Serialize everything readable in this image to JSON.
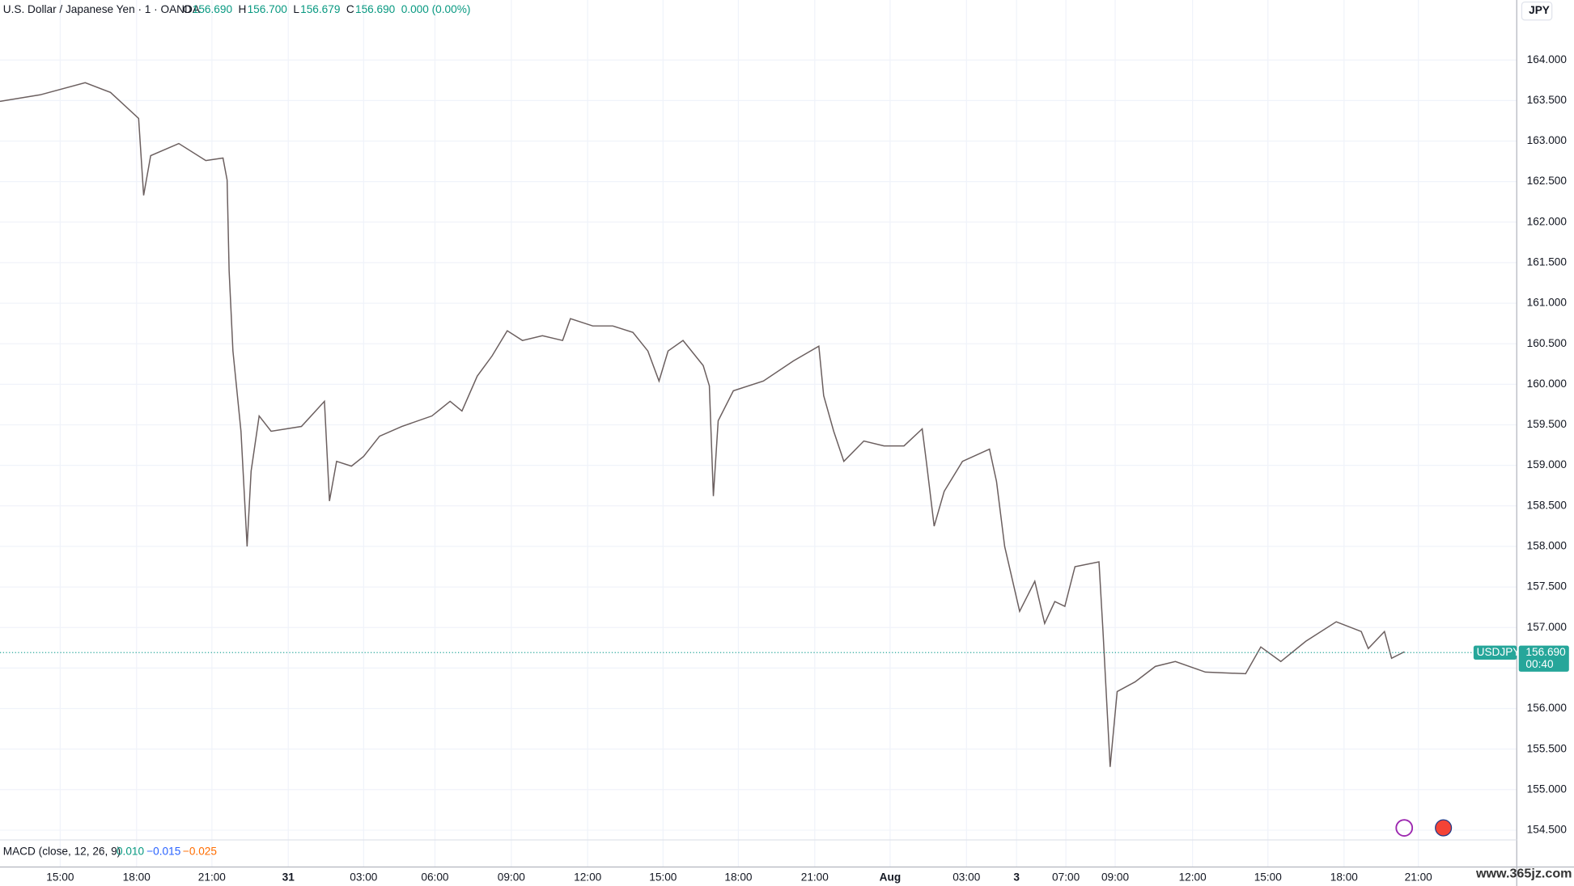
{
  "header": {
    "symbol": "U.S. Dollar / Japanese Yen · 1 · OANDA",
    "ohlc": [
      {
        "key": "O",
        "value": "156.690"
      },
      {
        "key": "H",
        "value": "156.700"
      },
      {
        "key": "L",
        "value": "156.679"
      },
      {
        "key": "C",
        "value": "156.690"
      }
    ],
    "change": "0.000 (0.00%)"
  },
  "currency": "JPY",
  "price_tag": {
    "symbol": "USDJPY",
    "countdown": "00:40"
  },
  "macd": {
    "label": "MACD (close, 12, 26, 9)",
    "macd": "0.010",
    "signal": "−0.015",
    "histogram": "−0.025"
  },
  "watermark": "www.365jz.com",
  "chart_data": {
    "type": "line",
    "x": [
      -2.38,
      -0.79,
      0.99,
      1.99,
      3.1,
      3.3,
      3.58,
      4.69,
      5.76,
      6.44,
      6.6,
      6.68,
      6.83,
      7.15,
      7.39,
      7.55,
      7.87,
      8.34,
      8.94,
      9.54,
      10.45,
      10.65,
      10.93,
      11.52,
      12.0,
      12.63,
      13.51,
      14.7,
      15.42,
      15.89,
      16.49,
      17.08,
      17.68,
      18.28,
      19.07,
      19.87,
      20.18,
      21.06,
      21.85,
      22.65,
      23.24,
      23.68,
      24.04,
      24.63,
      25.43,
      25.67,
      25.83,
      26.02,
      26.62,
      27.81,
      29.0,
      30.0,
      30.19,
      30.59,
      30.99,
      31.78,
      32.58,
      33.37,
      34.09,
      34.25,
      34.56,
      34.96,
      35.68,
      36.75,
      37.03,
      37.35,
      37.94,
      38.54,
      38.93,
      39.33,
      39.73,
      40.13,
      41.08,
      41.24,
      41.52,
      41.8,
      42.51,
      43.31,
      44.1,
      45.29,
      46.88,
      47.48,
      48.27,
      49.26,
      50.46,
      51.45,
      51.73,
      52.37,
      52.65,
      53.16
    ],
    "series": [
      {
        "name": "USDJPY",
        "color": "#6b5f5f",
        "values": [
          163.49,
          163.57,
          163.72,
          163.6,
          163.28,
          162.33,
          162.82,
          162.97,
          162.76,
          162.79,
          162.52,
          161.4,
          160.41,
          159.42,
          158.0,
          158.93,
          159.61,
          159.42,
          159.45,
          159.48,
          159.79,
          158.56,
          159.05,
          158.99,
          159.11,
          159.36,
          159.48,
          159.61,
          159.79,
          159.67,
          160.1,
          160.35,
          160.66,
          160.54,
          160.6,
          160.54,
          160.81,
          160.72,
          160.72,
          160.64,
          160.41,
          160.04,
          160.41,
          160.54,
          160.23,
          159.98,
          158.62,
          159.55,
          159.92,
          160.04,
          160.29,
          160.47,
          159.86,
          159.42,
          159.05,
          159.3,
          159.24,
          159.24,
          159.45,
          159.05,
          158.25,
          158.68,
          159.05,
          159.2,
          158.8,
          158.0,
          157.2,
          157.57,
          157.05,
          157.32,
          157.26,
          157.75,
          157.81,
          156.95,
          155.28,
          156.21,
          156.33,
          156.52,
          156.58,
          156.45,
          156.43,
          156.76,
          156.58,
          156.83,
          157.07,
          156.95,
          156.74,
          156.95,
          156.62,
          156.7
        ]
      }
    ],
    "last_price": {
      "value": 156.69,
      "label": "156.690"
    },
    "xlim": [
      -2.38,
      57.6
    ],
    "xticks": [
      {
        "value": 0,
        "label": "15:00"
      },
      {
        "value": 3.02,
        "label": "18:00"
      },
      {
        "value": 6.0,
        "label": "21:00"
      },
      {
        "value": 9.02,
        "label": "31"
      },
      {
        "value": 12.0,
        "label": "03:00"
      },
      {
        "value": 14.82,
        "label": "06:00"
      },
      {
        "value": 17.84,
        "label": "09:00"
      },
      {
        "value": 20.86,
        "label": "12:00"
      },
      {
        "value": 23.84,
        "label": "15:00"
      },
      {
        "value": 26.82,
        "label": "18:00"
      },
      {
        "value": 29.84,
        "label": "21:00"
      },
      {
        "value": 32.82,
        "label": "Aug"
      },
      {
        "value": 35.84,
        "label": "03:00"
      },
      {
        "value": 37.82,
        "label": "3"
      },
      {
        "value": 39.77,
        "label": "07:00"
      },
      {
        "value": 41.72,
        "label": "09:00"
      },
      {
        "value": 44.78,
        "label": "12:00"
      },
      {
        "value": 47.76,
        "label": "15:00"
      },
      {
        "value": 50.77,
        "label": "18:00"
      },
      {
        "value": 53.71,
        "label": "21:00"
      }
    ],
    "ylim": [
      154.38,
      164.74
    ],
    "yticks": [
      {
        "value": 154.5,
        "label": "154.500"
      },
      {
        "value": 155,
        "label": "155.000"
      },
      {
        "value": 155.5,
        "label": "155.500"
      },
      {
        "value": 156,
        "label": "156.000"
      },
      {
        "value": 156.5,
        "label": "156.500"
      },
      {
        "value": 157,
        "label": "157.000"
      },
      {
        "value": 157.5,
        "label": "157.500"
      },
      {
        "value": 158,
        "label": "158.000"
      },
      {
        "value": 158.5,
        "label": "158.500"
      },
      {
        "value": 159,
        "label": "159.000"
      },
      {
        "value": 159.5,
        "label": "159.500"
      },
      {
        "value": 160,
        "label": "160.000"
      },
      {
        "value": 160.5,
        "label": "160.500"
      },
      {
        "value": 161,
        "label": "161.000"
      },
      {
        "value": 161.5,
        "label": "161.500"
      },
      {
        "value": 162,
        "label": "162.000"
      },
      {
        "value": 162.5,
        "label": "162.500"
      },
      {
        "value": 163,
        "label": "163.000"
      },
      {
        "value": 163.5,
        "label": "163.500"
      },
      {
        "value": 164,
        "label": "164.000"
      }
    ],
    "grid": true
  }
}
